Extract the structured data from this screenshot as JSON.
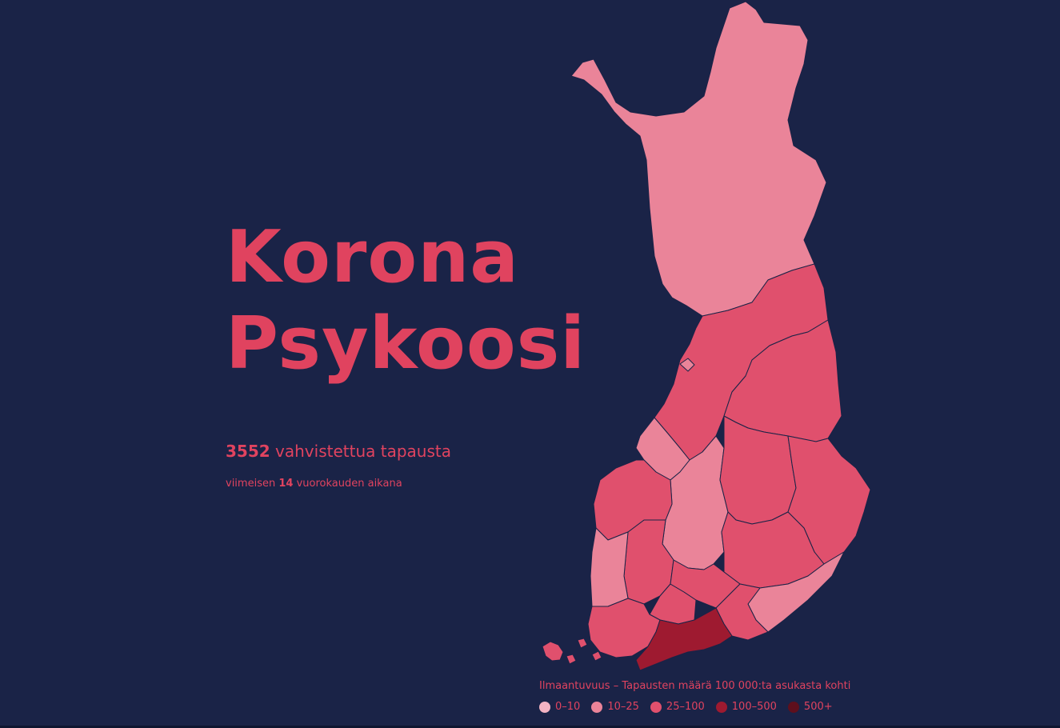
{
  "title": {
    "line1": "Korona",
    "line2": "Psykoosi"
  },
  "stats": {
    "confirmed_count": "3552",
    "confirmed_label": "vahvistettua tapausta",
    "period_prefix": "viimeisen",
    "period_days": "14",
    "period_suffix": "vuorokauden aikana"
  },
  "legend": {
    "title": "Ilmaantuvuus – Tapausten määrä 100 000:ta asukasta kohti",
    "items": [
      {
        "label": "0–10",
        "color": "#f3b3c3"
      },
      {
        "label": "10–25",
        "color": "#ea8499"
      },
      {
        "label": "25–100",
        "color": "#e0506d"
      },
      {
        "label": "100–500",
        "color": "#9e1a30"
      },
      {
        "label": "500+",
        "color": "#5e0f1d"
      }
    ]
  },
  "colors": {
    "background": "#1a2347",
    "accent": "#e0435f"
  }
}
